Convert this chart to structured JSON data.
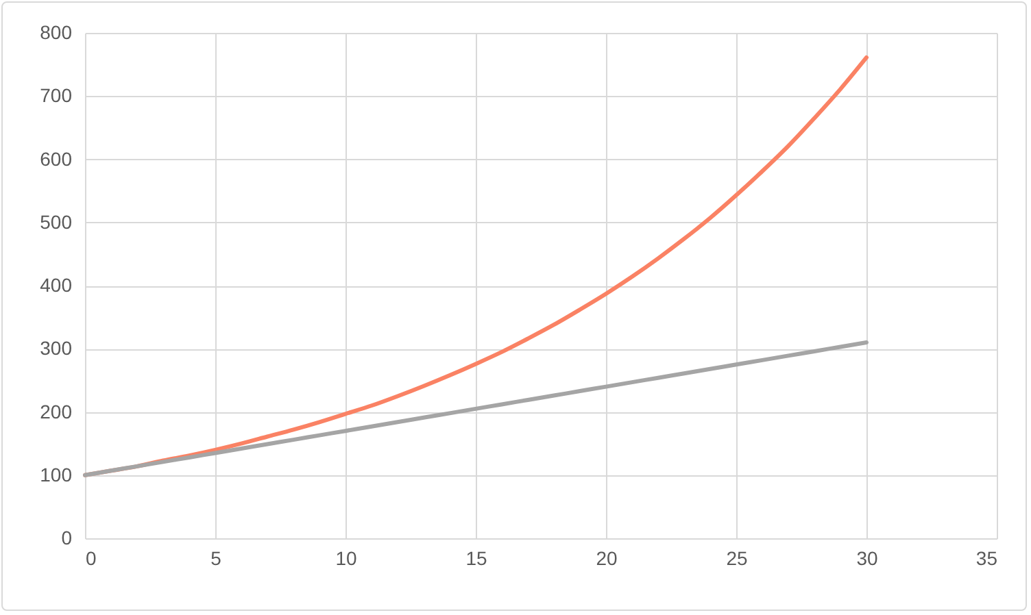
{
  "chart_data": {
    "type": "line",
    "x": [
      0,
      1,
      2,
      3,
      4,
      5,
      6,
      7,
      8,
      9,
      10,
      11,
      12,
      13,
      14,
      15,
      16,
      17,
      18,
      19,
      20,
      21,
      22,
      23,
      24,
      25,
      26,
      27,
      28,
      29,
      30
    ],
    "series": [
      {
        "color": "#fa8264",
        "values": [
          100,
          107,
          114,
          123,
          131,
          140,
          150,
          161,
          172,
          184,
          197,
          210,
          225,
          241,
          258,
          276,
          295,
          316,
          338,
          362,
          387,
          414,
          443,
          474,
          507,
          543,
          581,
          621,
          665,
          711,
          761
        ]
      },
      {
        "color": "#a5a5a5",
        "values": [
          100,
          107,
          114,
          121,
          128,
          135,
          142,
          149,
          156,
          163,
          170,
          177,
          184,
          191,
          198,
          205,
          212,
          219,
          226,
          233,
          240,
          247,
          254,
          261,
          268,
          275,
          282,
          289,
          296,
          303,
          310
        ]
      }
    ],
    "xlim": [
      0,
      35
    ],
    "xticks": [
      0,
      5,
      10,
      15,
      20,
      25,
      30,
      35
    ],
    "ylim": [
      0,
      800
    ],
    "yticks": [
      0,
      100,
      200,
      300,
      400,
      500,
      600,
      700,
      800
    ],
    "grid": true,
    "legend": false,
    "marker": "none",
    "line_style": "solid"
  }
}
